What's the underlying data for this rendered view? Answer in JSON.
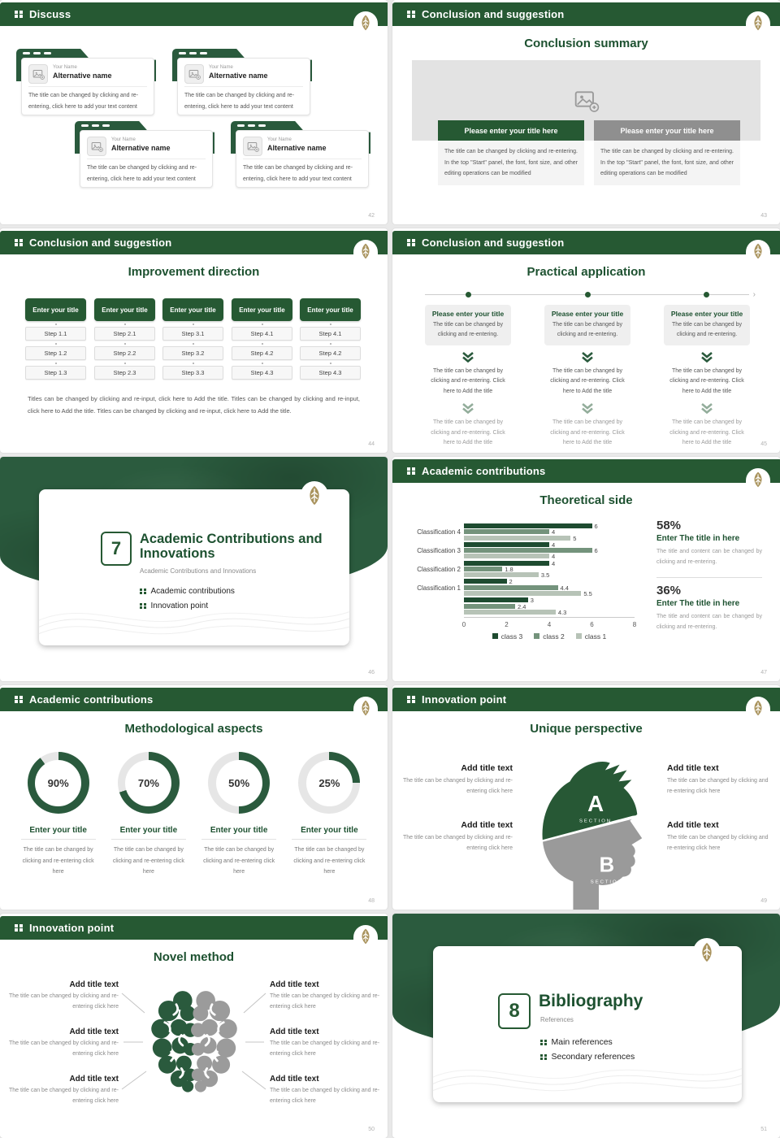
{
  "theme": {
    "green": "#265933",
    "green_dark": "#1d5130",
    "green_mid": "#74937c",
    "green_light": "#b7c3b7",
    "gold": "#a9935d",
    "gray_bar": "#8f8f8f"
  },
  "common": {
    "your_name": "Your Name",
    "alternative_name": "Alternative name",
    "discuss_body": "The title can be changed by clicking and re-entering, click here to add your text content",
    "start_panel_body": "The title can be changed by clicking and re-entering. In the top \"Start\" panel, the font, font size, and other editing operations can be modified",
    "enter_your_title": "Enter your title",
    "please_enter_your_title": "Please enter your title",
    "please_enter_your_title_here": "Please enter your title here",
    "changed_by_clicking": "The title can be changed by clicking and re-entering.",
    "changed_click_add": "The title can be changed by clicking and re-entering. Click here to Add the title",
    "changed_click_here": "The title can be changed by clicking and re-entering click here",
    "title_and_content": "The title and content can be changed by clicking and re-entering.",
    "add_title_text": "Add title text"
  },
  "slides": {
    "discuss": {
      "header": "Discuss",
      "page": "42"
    },
    "conclusion_summary": {
      "header": "Conclusion and suggestion",
      "title": "Conclusion summary",
      "page": "43",
      "bar_left": "Please enter your title here",
      "bar_right": "Please enter your title here"
    },
    "improvement": {
      "header": "Conclusion and suggestion",
      "title": "Improvement direction",
      "page": "44",
      "footer": "Titles can be changed by clicking and re-input, click here to Add the title. Titles can be changed by clicking and re-input, click here to Add the title. Titles can be changed by clicking and re-input, click here to Add the title.",
      "columns": [
        {
          "steps": [
            "Step 1.1",
            "Step 1.2",
            "Step 1.3"
          ]
        },
        {
          "steps": [
            "Step 2.1",
            "Step 2.2",
            "Step 2.3"
          ]
        },
        {
          "steps": [
            "Step 3.1",
            "Step 3.2",
            "Step 3.3"
          ]
        },
        {
          "steps": [
            "Step 4.1",
            "Step 4.2",
            "Step 4.3"
          ]
        },
        {
          "steps": [
            "Step 4.1",
            "Step 4.2",
            "Step 4.3"
          ]
        }
      ]
    },
    "practical": {
      "header": "Conclusion and suggestion",
      "title": "Practical application",
      "page": "45"
    },
    "section7": {
      "number": "7",
      "title": "Academic Contributions and Innovations",
      "subtitle": "Academic Contributions and Innovations",
      "bullets": [
        "Academic contributions",
        "Innovation point"
      ],
      "page": "46"
    },
    "theoretical": {
      "header": "Academic contributions",
      "title": "Theoretical side",
      "page": "47",
      "chart_data": {
        "type": "bar",
        "orientation": "horizontal",
        "categories": [
          "Classification 4",
          "Classification 3",
          "Classification 2",
          "Classification 1",
          ""
        ],
        "series": [
          {
            "name": "class 3",
            "color": "#1e4b30",
            "values": [
              6,
              4,
              4,
              2,
              3
            ]
          },
          {
            "name": "class 2",
            "color": "#74937c",
            "values": [
              4,
              6,
              1.8,
              4.4,
              2.4
            ]
          },
          {
            "name": "class 1",
            "color": "#b7c3b7",
            "values": [
              5,
              4,
              3.5,
              5.5,
              4.3
            ]
          }
        ],
        "xlim": [
          0,
          8
        ],
        "xticks": [
          0,
          2,
          4,
          6,
          8
        ],
        "grid": false,
        "legend_position": "bottom"
      },
      "stats": [
        {
          "pct": "58%",
          "title": "Enter The title in here"
        },
        {
          "pct": "36%",
          "title": "Enter The title in here"
        }
      ]
    },
    "methodological": {
      "header": "Academic contributions",
      "title": "Methodological aspects",
      "page": "48",
      "items": [
        {
          "value": 90,
          "label": "90%"
        },
        {
          "value": 70,
          "label": "70%"
        },
        {
          "value": 50,
          "label": "50%"
        },
        {
          "value": 25,
          "label": "25%"
        }
      ]
    },
    "unique": {
      "header": "Innovation point",
      "title": "Unique perspective",
      "page": "49",
      "section_a": "A",
      "section_b": "B",
      "section_word": "SECTION"
    },
    "novel": {
      "header": "Innovation point",
      "title": "Novel method",
      "page": "50"
    },
    "section8": {
      "number": "8",
      "title": "Bibliography",
      "subtitle": "References",
      "bullets": [
        "Main references",
        "Secondary references"
      ],
      "page": "51"
    }
  }
}
